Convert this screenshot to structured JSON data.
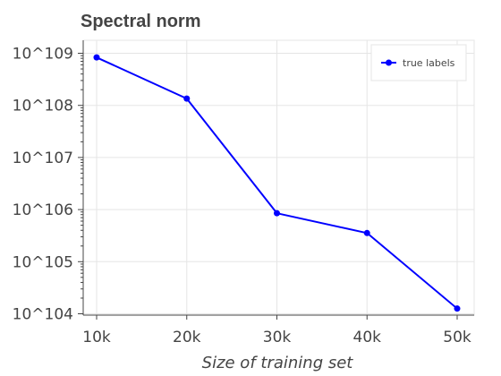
{
  "chart_data": {
    "type": "line",
    "title": "Spectral norm",
    "xlabel": "Size of training set",
    "ylabel": "",
    "x": [
      10000,
      20000,
      30000,
      40000,
      50000
    ],
    "x_tick_labels": [
      "10k",
      "20k",
      "30k",
      "40k",
      "50k"
    ],
    "y_scale": "log",
    "y_tick_labels": [
      "10^109",
      "10^108",
      "10^107",
      "10^106",
      "10^105",
      "10^104"
    ],
    "y_ticks_log10": [
      109,
      108,
      107,
      106,
      105,
      104
    ],
    "ylim_log10": [
      104,
      109.2
    ],
    "series": [
      {
        "name": "true labels",
        "color": "#0000ff",
        "values_log10": [
          108.92,
          108.13,
          105.93,
          105.55,
          104.1
        ]
      }
    ],
    "legend_position": "top-right",
    "grid": true
  }
}
